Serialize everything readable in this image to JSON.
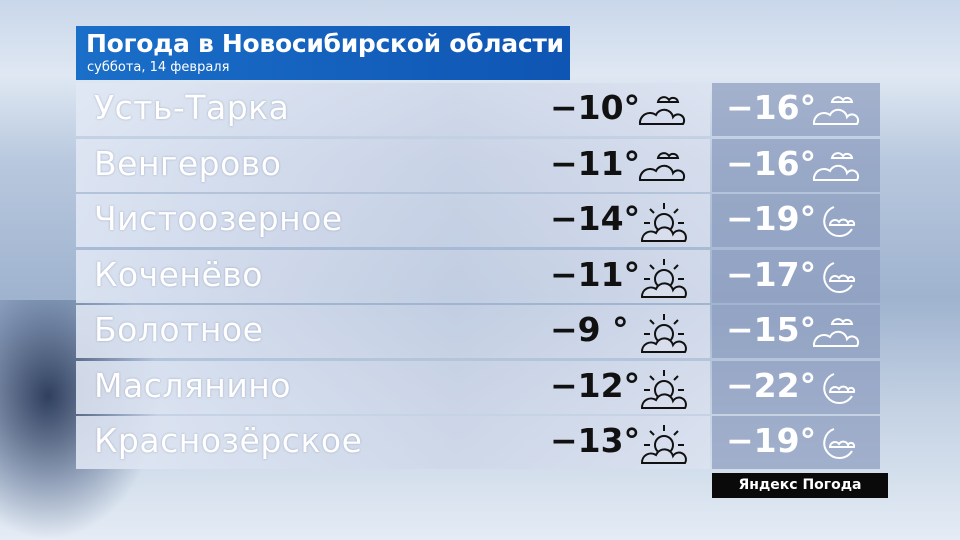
{
  "header": {
    "title": "Погода в Новосибирской области",
    "subtitle": "суббота, 14 февраля"
  },
  "colors": {
    "title_bg": "#1a6fc9",
    "day_text": "#111111",
    "night_text": "#ffffff"
  },
  "rows": [
    {
      "city": "Усть-Тарка",
      "day": "−10°",
      "day_icon": "cloudy-icon",
      "night": "−16°",
      "night_icon": "cloudy-icon"
    },
    {
      "city": "Венгерово",
      "day": "−11°",
      "day_icon": "cloudy-icon",
      "night": "−16°",
      "night_icon": "cloudy-icon"
    },
    {
      "city": "Чистоозерное",
      "day": "−14°",
      "day_icon": "partly-cloudy-day-icon",
      "night": "−19°",
      "night_icon": "partly-cloudy-night-icon"
    },
    {
      "city": "Коченёво",
      "day": "−11°",
      "day_icon": "partly-cloudy-day-icon",
      "night": "−17°",
      "night_icon": "partly-cloudy-night-icon"
    },
    {
      "city": "Болотное",
      "day": "−9 °",
      "day_icon": "partly-cloudy-day-icon",
      "night": "−15°",
      "night_icon": "cloudy-icon"
    },
    {
      "city": "Маслянино",
      "day": "−12°",
      "day_icon": "partly-cloudy-day-icon",
      "night": "−22°",
      "night_icon": "partly-cloudy-night-icon"
    },
    {
      "city": "Краснозёрское",
      "day": "−13°",
      "day_icon": "partly-cloudy-day-icon",
      "night": "−19°",
      "night_icon": "partly-cloudy-night-icon"
    }
  ],
  "footer": {
    "brand": "Яндекс Погода"
  }
}
